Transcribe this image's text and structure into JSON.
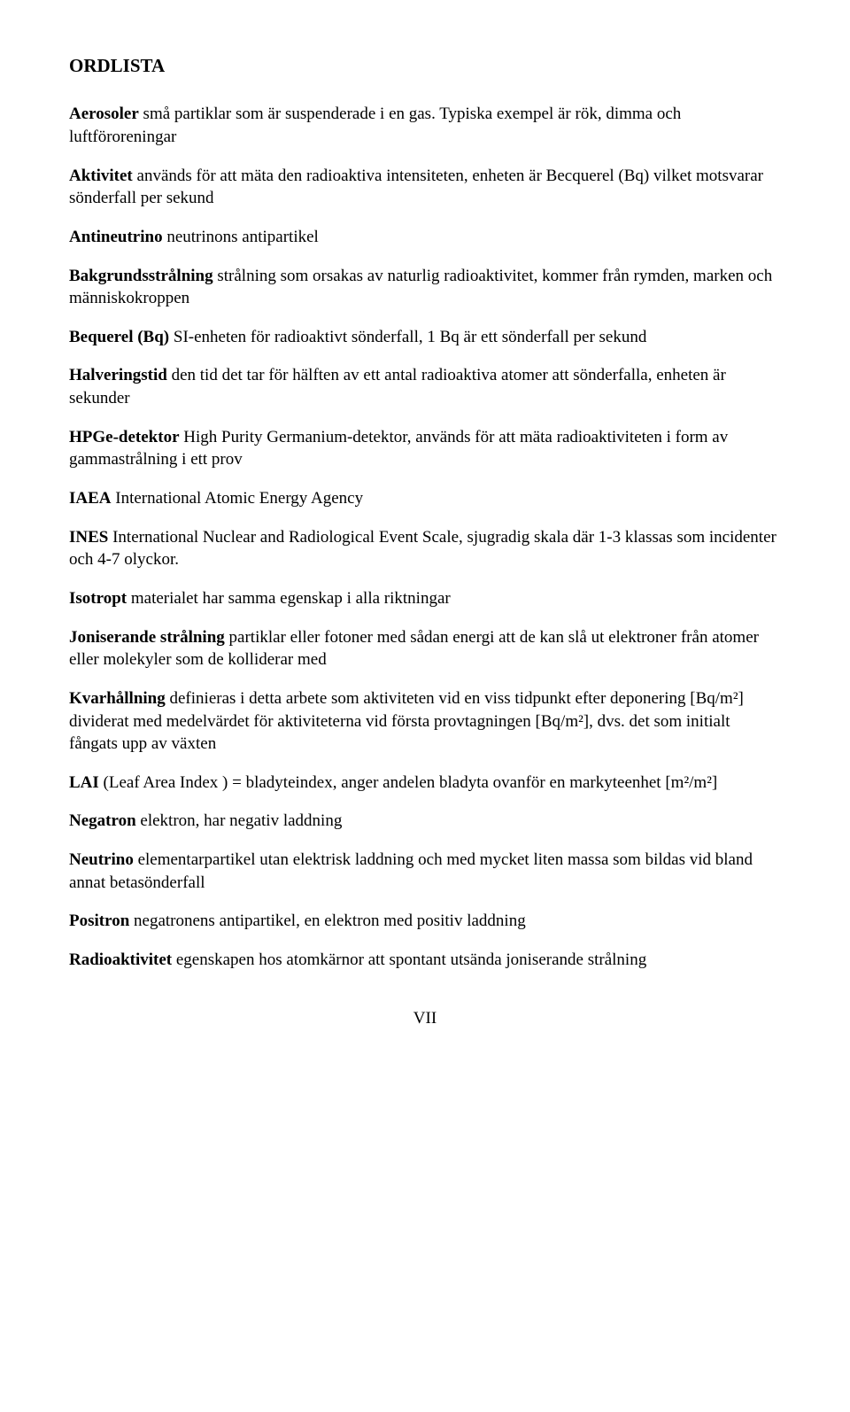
{
  "heading": "ORDLISTA",
  "entries": [
    {
      "term": "Aerosoler",
      "def": " små partiklar som är suspenderade i en gas. Typiska exempel är rök, dimma och luftföroreningar"
    },
    {
      "term": "Aktivitet",
      "def": " används för att mäta den radioaktiva intensiteten, enheten är Becquerel (Bq) vilket motsvarar sönderfall per sekund"
    },
    {
      "term": "Antineutrino",
      "def": " neutrinons antipartikel"
    },
    {
      "term": "Bakgrundsstrålning",
      "def": " strålning som orsakas av naturlig radioaktivitet, kommer från rymden, marken och människokroppen"
    },
    {
      "term": "Bequerel (Bq)",
      "def": " SI-enheten för radioaktivt sönderfall, 1 Bq är ett sönderfall per sekund"
    },
    {
      "term": "Halveringstid",
      "def": " den tid det tar för hälften av ett antal radioaktiva atomer att sönderfalla, enheten är sekunder"
    },
    {
      "term": "HPGe-detektor",
      "def": " High Purity Germanium-detektor, används för att mäta radioaktiviteten i form av gammastrålning i ett prov"
    },
    {
      "term": "IAEA",
      "def": " International Atomic Energy Agency"
    },
    {
      "term": "INES",
      "def": " International Nuclear and Radiological Event Scale, sjugradig skala där 1-3 klassas som incidenter och 4-7 olyckor."
    },
    {
      "term": "Isotropt",
      "def": " materialet har samma egenskap i alla riktningar"
    },
    {
      "term": "Joniserande strålning",
      "def": " partiklar eller fotoner med sådan energi att de kan slå ut elektroner från atomer eller molekyler som de kolliderar med"
    },
    {
      "term": "Kvarhållning",
      "def": " definieras i detta arbete som aktiviteten vid en viss tidpunkt efter deponering [Bq/m²] dividerat med medelvärdet för aktiviteterna vid första provtagningen [Bq/m²], dvs. det som initialt fångats upp av växten"
    },
    {
      "term": "LAI",
      "def": " (Leaf Area Index ) = bladyteindex, anger andelen bladyta ovanför en markyteenhet [m²/m²]"
    },
    {
      "term": "Negatron",
      "def": " elektron, har negativ laddning"
    },
    {
      "term": "Neutrino",
      "def": " elementarpartikel utan elektrisk laddning och med mycket liten massa som bildas vid bland annat betasönderfall"
    },
    {
      "term": "Positron",
      "def": " negatronens antipartikel, en elektron med positiv laddning"
    },
    {
      "term": "Radioaktivitet",
      "def": " egenskapen hos atomkärnor att spontant utsända joniserande strålning"
    }
  ],
  "page_number": "VII"
}
